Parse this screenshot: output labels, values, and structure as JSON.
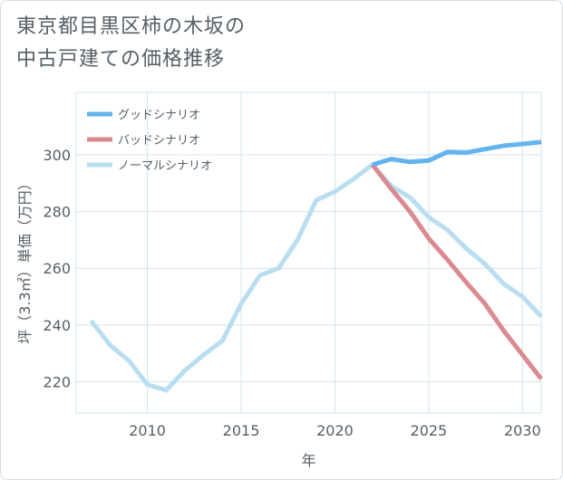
{
  "title": {
    "line1": "東京都目黒区柿の木坂の",
    "line2": "中古戸建ての価格推移"
  },
  "colors": {
    "good": "#63b3ee",
    "bad": "#db8a90",
    "normal": "#b9def0",
    "grid": "#d2e4ee",
    "text": "#555f66"
  },
  "chart_data": {
    "type": "line",
    "xlabel": "年",
    "ylabel": "坪（3.3㎡）単価（万円）",
    "xlim": [
      2006.2,
      2031
    ],
    "ylim": [
      209,
      322
    ],
    "xticks": [
      2010,
      2015,
      2020,
      2025,
      2030
    ],
    "yticks": [
      220,
      240,
      260,
      280,
      300
    ],
    "grid": true,
    "legend_position": "top-left",
    "series": [
      {
        "name": "グッドシナリオ",
        "color": "#63b3ee",
        "x": [
          2022,
          2023,
          2024,
          2025,
          2026,
          2027,
          2028,
          2029,
          2030,
          2031
        ],
        "y": [
          296.5,
          298.5,
          297.5,
          298.0,
          301.0,
          300.8,
          302.0,
          303.2,
          303.8,
          304.5
        ]
      },
      {
        "name": "バッドシナリオ",
        "color": "#db8a90",
        "x": [
          2022,
          2023,
          2024,
          2025,
          2026,
          2027,
          2028,
          2029,
          2030,
          2031
        ],
        "y": [
          296.5,
          288.0,
          280.0,
          270.5,
          263.0,
          255.0,
          247.5,
          238.0,
          229.5,
          221.0
        ]
      },
      {
        "name": "ノーマルシナリオ",
        "color": "#b9def0",
        "x": [
          2007,
          2008,
          2009,
          2010,
          2011,
          2012,
          2013,
          2014,
          2015,
          2016,
          2017,
          2018,
          2019,
          2020,
          2021,
          2022,
          2023,
          2024,
          2025,
          2026,
          2027,
          2028,
          2029,
          2030,
          2031
        ],
        "y": [
          241.5,
          233.0,
          227.5,
          219.0,
          217.0,
          224.0,
          229.5,
          234.5,
          247.5,
          257.5,
          260.0,
          270.0,
          284.0,
          287.0,
          291.5,
          296.5,
          289.0,
          285.0,
          278.0,
          273.5,
          267.0,
          261.5,
          254.5,
          250.0,
          243.0
        ]
      }
    ]
  }
}
